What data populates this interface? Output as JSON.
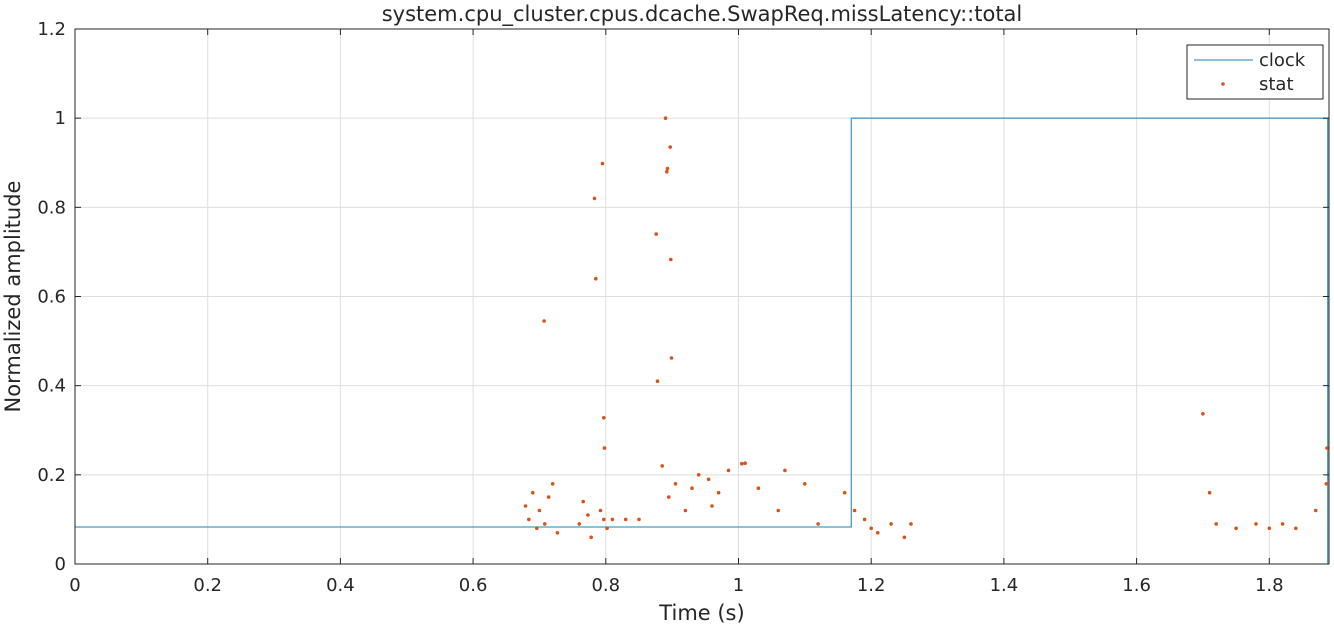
{
  "chart_data": {
    "type": "scatter",
    "title": "system.cpu_cluster.cpus.dcache.SwapReq.missLatency::total",
    "xlabel": "Time (s)",
    "ylabel": "Normalized amplitude",
    "xlim": [
      0,
      1.89
    ],
    "ylim": [
      0,
      1.2
    ],
    "xticks": [
      0,
      0.2,
      0.4,
      0.6,
      0.8,
      1,
      1.2,
      1.4,
      1.6,
      1.8
    ],
    "xtick_labels": [
      "0",
      "0.2",
      "0.4",
      "0.6",
      "0.8",
      "1",
      "1.2",
      "1.4",
      "1.6",
      "1.8"
    ],
    "yticks": [
      0,
      0.2,
      0.4,
      0.6,
      0.8,
      1,
      1.2
    ],
    "ytick_labels": [
      "0",
      "0.2",
      "0.4",
      "0.6",
      "0.8",
      "1",
      "1.2"
    ],
    "grid": true,
    "legend_position": "top-right",
    "series": [
      {
        "name": "clock",
        "kind": "step-line",
        "color": "#4a9cc0",
        "x": [
          0,
          1.17,
          1.17,
          1.888,
          1.888
        ],
        "y": [
          0.083,
          0.083,
          1,
          1,
          0
        ]
      },
      {
        "name": "stat",
        "kind": "scatter",
        "color": "#d95319",
        "x": [
          0.707,
          0.783,
          0.785,
          0.795,
          0.797,
          0.798,
          0.876,
          0.878,
          0.89,
          0.892,
          0.893,
          0.897,
          0.898,
          0.899,
          1.7,
          1.887,
          0.679,
          0.684,
          0.69,
          0.696,
          0.7,
          0.708,
          0.714,
          0.72,
          0.727,
          0.76,
          0.766,
          0.773,
          0.778,
          0.792,
          0.797,
          0.802,
          0.81,
          0.83,
          0.85,
          0.885,
          0.895,
          0.905,
          0.92,
          0.93,
          0.94,
          0.955,
          0.96,
          0.97,
          0.985,
          1.005,
          1.01,
          1.03,
          1.06,
          1.07,
          1.1,
          1.12,
          1.16,
          1.175,
          1.19,
          1.2,
          1.21,
          1.23,
          1.25,
          1.26,
          1.71,
          1.72,
          1.75,
          1.78,
          1.8,
          1.82,
          1.84,
          1.87,
          1.886
        ],
        "y": [
          0.545,
          0.82,
          0.64,
          0.898,
          0.328,
          0.26,
          0.74,
          0.41,
          1.0,
          0.88,
          0.887,
          0.935,
          0.683,
          0.462,
          0.337,
          0.26,
          0.13,
          0.1,
          0.16,
          0.08,
          0.12,
          0.09,
          0.15,
          0.18,
          0.07,
          0.09,
          0.14,
          0.11,
          0.06,
          0.12,
          0.1,
          0.08,
          0.1,
          0.1,
          0.1,
          0.22,
          0.15,
          0.18,
          0.12,
          0.17,
          0.2,
          0.19,
          0.13,
          0.16,
          0.21,
          0.225,
          0.226,
          0.17,
          0.12,
          0.21,
          0.18,
          0.09,
          0.16,
          0.12,
          0.1,
          0.08,
          0.07,
          0.09,
          0.06,
          0.09,
          0.16,
          0.09,
          0.08,
          0.09,
          0.08,
          0.09,
          0.08,
          0.12,
          0.18
        ]
      }
    ]
  }
}
